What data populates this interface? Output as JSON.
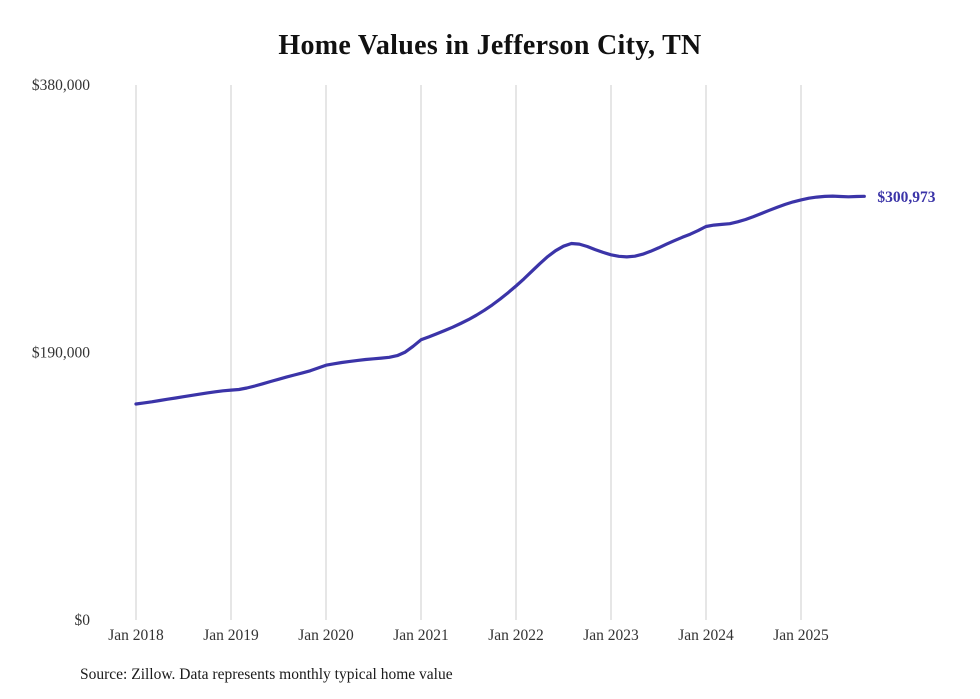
{
  "chart": {
    "title": "Home Values in Jefferson City, TN",
    "source": "Source: Zillow. Data represents monthly typical home value",
    "end_label": "$300,973"
  },
  "chart_data": {
    "type": "line",
    "title": "Home Values in Jefferson City, TN",
    "source": "Source: Zillow. Data represents monthly typical home value",
    "end_label": "$300,973",
    "line_color": "#3b34a8",
    "grid_color": "#cccccc",
    "tick_text_color": "#333333",
    "ylim": [
      0,
      380000
    ],
    "grid": "vertical-only",
    "legend": "none",
    "y_ticks": [
      {
        "label": "$0",
        "value": 0
      },
      {
        "label": "$190,000",
        "value": 190000
      },
      {
        "label": "$380,000",
        "value": 380000
      }
    ],
    "x_ticks": [
      "Jan 2018",
      "Jan 2019",
      "Jan 2020",
      "Jan 2021",
      "Jan 2022",
      "Jan 2023",
      "Jan 2024",
      "Jan 2025"
    ],
    "x": [
      "2018-01",
      "2018-02",
      "2018-03",
      "2018-04",
      "2018-05",
      "2018-06",
      "2018-07",
      "2018-08",
      "2018-09",
      "2018-10",
      "2018-11",
      "2018-12",
      "2019-01",
      "2019-02",
      "2019-03",
      "2019-04",
      "2019-05",
      "2019-06",
      "2019-07",
      "2019-08",
      "2019-09",
      "2019-10",
      "2019-11",
      "2019-12",
      "2020-01",
      "2020-02",
      "2020-03",
      "2020-04",
      "2020-05",
      "2020-06",
      "2020-07",
      "2020-08",
      "2020-09",
      "2020-10",
      "2020-11",
      "2020-12",
      "2021-01",
      "2021-02",
      "2021-03",
      "2021-04",
      "2021-05",
      "2021-06",
      "2021-07",
      "2021-08",
      "2021-09",
      "2021-10",
      "2021-11",
      "2021-12",
      "2022-01",
      "2022-02",
      "2022-03",
      "2022-04",
      "2022-05",
      "2022-06",
      "2022-07",
      "2022-08",
      "2022-09",
      "2022-10",
      "2022-11",
      "2022-12",
      "2023-01",
      "2023-02",
      "2023-03",
      "2023-04",
      "2023-05",
      "2023-06",
      "2023-07",
      "2023-08",
      "2023-09",
      "2023-10",
      "2023-11",
      "2023-12",
      "2024-01",
      "2024-02",
      "2024-03",
      "2024-04",
      "2024-05",
      "2024-06",
      "2024-07",
      "2024-08",
      "2024-09",
      "2024-10",
      "2024-11",
      "2024-12",
      "2025-01",
      "2025-02",
      "2025-03",
      "2025-04",
      "2025-05",
      "2025-06",
      "2025-07",
      "2025-08",
      "2025-09"
    ],
    "values": [
      153400,
      154200,
      155000,
      155900,
      156800,
      157700,
      158600,
      159500,
      160400,
      161300,
      162100,
      162800,
      163300,
      163700,
      164800,
      166200,
      167800,
      169400,
      171000,
      172500,
      174000,
      175500,
      177000,
      179000,
      181000,
      182000,
      182900,
      183700,
      184400,
      185000,
      185500,
      186000,
      186600,
      187800,
      190300,
      194400,
      199000,
      201100,
      203300,
      205600,
      208000,
      210600,
      213400,
      216500,
      220000,
      223800,
      228000,
      232500,
      237200,
      242300,
      247700,
      253100,
      258100,
      262300,
      265500,
      267400,
      267000,
      265300,
      263100,
      261100,
      259400,
      258300,
      257900,
      258400,
      259800,
      261900,
      264300,
      266900,
      269400,
      271800,
      274000,
      276600,
      279500,
      280500,
      281000,
      281500,
      282800,
      284500,
      286500,
      288700,
      291000,
      293200,
      295200,
      297000,
      298400,
      299600,
      300400,
      300900,
      301100,
      300800,
      300600,
      300800,
      300973
    ]
  }
}
